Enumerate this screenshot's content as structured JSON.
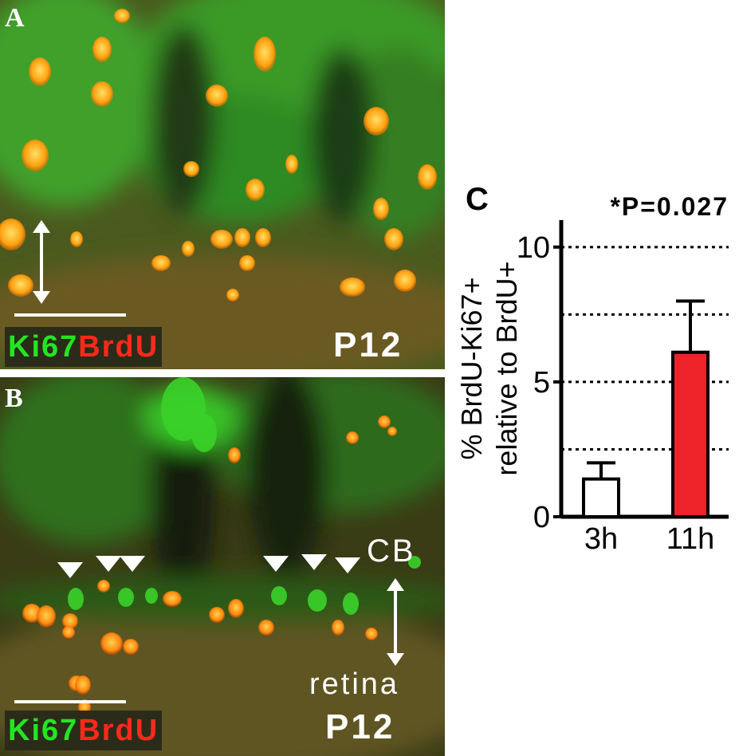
{
  "panels": {
    "a": {
      "letter": "A",
      "stain_green": "Ki67",
      "stain_red": "BrdU",
      "age": "P12"
    },
    "b": {
      "letter": "B",
      "stain_green": "Ki67",
      "stain_red": "BrdU",
      "age": "P12",
      "label_top": "CB",
      "label_bottom": "retina"
    }
  },
  "colors": {
    "green": "#22e622",
    "red": "#ff2a1a",
    "bar_red": "#ee2229",
    "nucleus": "#ffb31a"
  },
  "chart_data": {
    "panel_letter": "C",
    "type": "bar",
    "categories": [
      "3h",
      "11h"
    ],
    "series": [
      {
        "values": [
          1.4,
          6.1
        ],
        "errors": [
          0.6,
          1.9
        ],
        "colors": [
          "#ffffff",
          "#ee2229"
        ]
      }
    ],
    "ylabel_line1": "% BrdU-Ki67+",
    "ylabel_line2": "relative to BrdU+",
    "ylim": [
      0,
      11
    ],
    "yticks": [
      0,
      5,
      10
    ],
    "gridlines": [
      2.5,
      5,
      7.5,
      10
    ],
    "annotation": "*P=0.027"
  }
}
